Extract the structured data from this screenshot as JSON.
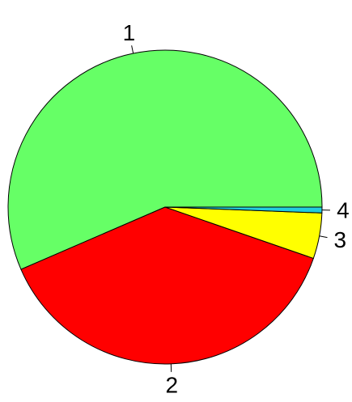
{
  "chart_data": {
    "type": "pie",
    "start_angle_deg": 0,
    "direction": "counterclockwise",
    "border": true,
    "slices": [
      {
        "label": "1",
        "value": 56.5,
        "color": "#66FF66"
      },
      {
        "label": "2",
        "value": 38.2,
        "color": "#FF0000"
      },
      {
        "label": "3",
        "value": 4.7,
        "color": "#FFFF00"
      },
      {
        "label": "4",
        "value": 0.6,
        "color": "#22CCDD"
      }
    ]
  }
}
